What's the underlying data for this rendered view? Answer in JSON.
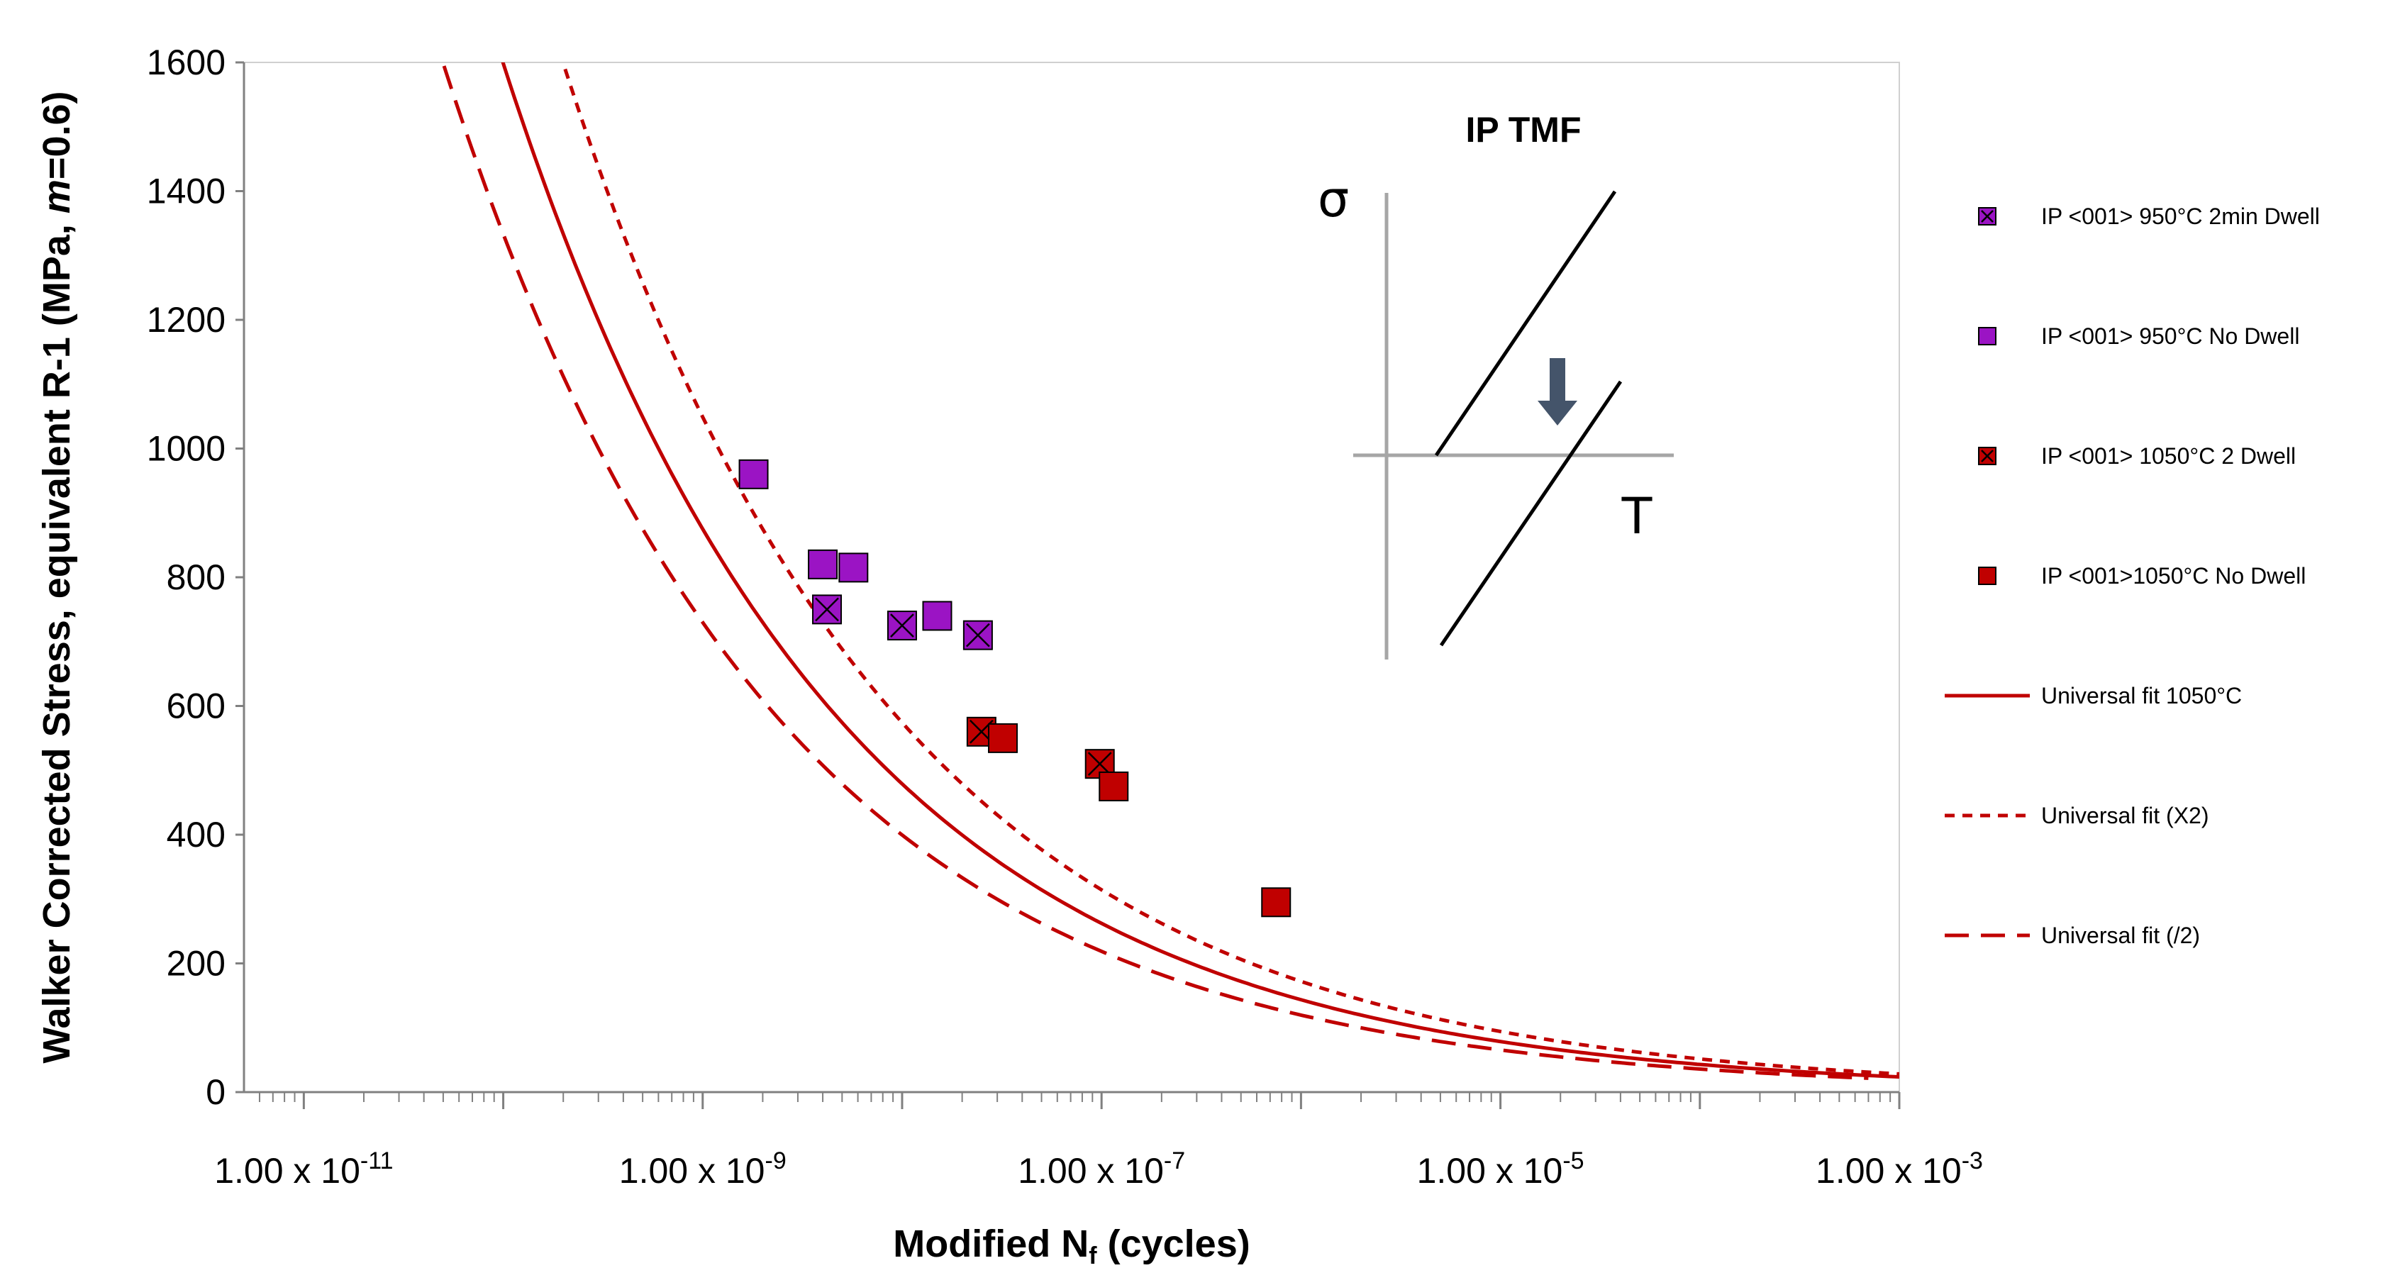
{
  "chart_data": {
    "type": "scatter",
    "xscale": "log",
    "xlim_exp": [
      -11.3,
      -3
    ],
    "ylim": [
      0,
      1600
    ],
    "yticks": [
      0,
      200,
      400,
      600,
      800,
      1000,
      1200,
      1400,
      1600
    ],
    "xtick_labels": [
      {
        "exp": -11,
        "base": "1.00 x 10",
        "sup": "-11"
      },
      {
        "exp": -9,
        "base": "1.00 x 10",
        "sup": "-9"
      },
      {
        "exp": -7,
        "base": "1.00 x 10",
        "sup": "-7"
      },
      {
        "exp": -5,
        "base": "1.00 x 10",
        "sup": "-5"
      },
      {
        "exp": -3,
        "base": "1.00 x 10",
        "sup": "-3"
      }
    ],
    "xlabel": {
      "main": "Modified N",
      "sub": "f",
      "rest": " (cycles)"
    },
    "ylabel": {
      "main": "Walker Corrected Stress, equivalent R-1 (MPa, ",
      "italic": "m",
      "rest": "=0.6)"
    },
    "inset": {
      "title": "IP TMF",
      "y_symbol": "σ",
      "x_symbol": "T"
    },
    "series": [
      {
        "name": "IP <001> 950°C 2min Dwell",
        "kind": "marker",
        "color": "#9b14c4",
        "cross": true,
        "points": [
          [
            4.2e-09,
            750
          ],
          [
            1e-08,
            725
          ],
          [
            2.4e-08,
            710
          ]
        ]
      },
      {
        "name": "IP <001> 950°C No Dwell",
        "kind": "marker",
        "color": "#9b14c4",
        "cross": false,
        "points": [
          [
            1.8e-09,
            960
          ],
          [
            4e-09,
            820
          ],
          [
            5.7e-09,
            815
          ],
          [
            1.5e-08,
            740
          ]
        ]
      },
      {
        "name": "IP <001> 1050°C 2 Dwell",
        "kind": "marker",
        "color": "#c00000",
        "cross": true,
        "points": [
          [
            2.5e-08,
            560
          ],
          [
            9.8e-08,
            510
          ]
        ]
      },
      {
        "name": "IP <001>1050°C No Dwell",
        "kind": "marker",
        "color": "#c00000",
        "cross": false,
        "points": [
          [
            3.2e-08,
            550
          ],
          [
            1.15e-07,
            475
          ],
          [
            7.5e-07,
            295
          ]
        ]
      },
      {
        "name": "Universal fit 1050°C",
        "kind": "line",
        "dash": "solid",
        "color": "#c00000",
        "fit": {
          "x_ref": 1e-09,
          "y_ref": 875,
          "slope": -0.2617
        },
        "xrange": [
          2.5e-11,
          0.001
        ]
      },
      {
        "name": "Universal fit (X2)",
        "kind": "line",
        "dash": "short",
        "color": "#c00000",
        "fit": {
          "x_ref": 2e-09,
          "y_ref": 875,
          "slope": -0.2617
        },
        "xrange": [
          4.5e-11,
          0.001
        ]
      },
      {
        "name": "Universal fit (/2)",
        "kind": "line",
        "dash": "long",
        "color": "#c00000",
        "fit": {
          "x_ref": 5e-10,
          "y_ref": 875,
          "slope": -0.2617
        },
        "xrange": [
          1.5e-11,
          0.0007
        ]
      }
    ]
  }
}
